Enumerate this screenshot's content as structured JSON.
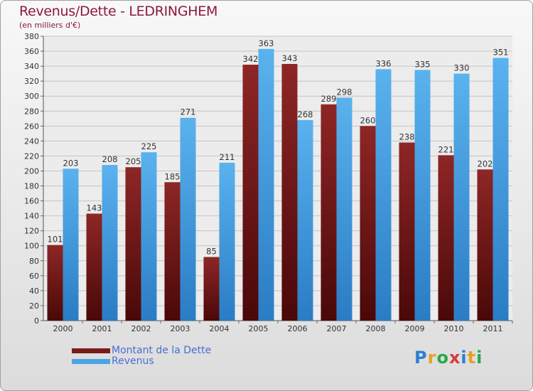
{
  "title": "Revenus/Dette - LEDRINGHEM",
  "subtitle": "(en milliers d'€)",
  "logo": {
    "letters": [
      "P",
      "r",
      "o",
      "x",
      "i",
      "t",
      "i"
    ],
    "colors": [
      "#2a7fd4",
      "#e8a020",
      "#2aa84a",
      "#d43a3a",
      "#2a7fd4",
      "#e8a020",
      "#2aa84a"
    ]
  },
  "chart_data": {
    "type": "bar",
    "categories": [
      "2000",
      "2001",
      "2002",
      "2003",
      "2004",
      "2005",
      "2006",
      "2007",
      "2008",
      "2009",
      "2010",
      "2011"
    ],
    "series": [
      {
        "name": "Montant de la Dette",
        "color": "#7a1b1b",
        "values": [
          101,
          143,
          205,
          185,
          85,
          342,
          343,
          289,
          260,
          238,
          221,
          202
        ]
      },
      {
        "name": "Revenus",
        "color": "#4aa3e6",
        "values": [
          203,
          208,
          225,
          271,
          211,
          363,
          268,
          298,
          336,
          335,
          330,
          351
        ]
      }
    ],
    "ylim": [
      0,
      380
    ],
    "ytick_step": 20,
    "yticks": [
      "0",
      "20",
      "40",
      "60",
      "80",
      "100",
      "120",
      "140",
      "160",
      "180",
      "200",
      "220",
      "240",
      "260",
      "280",
      "300",
      "320",
      "340",
      "360",
      "380"
    ],
    "grid": true,
    "legend": "bottom-left"
  }
}
